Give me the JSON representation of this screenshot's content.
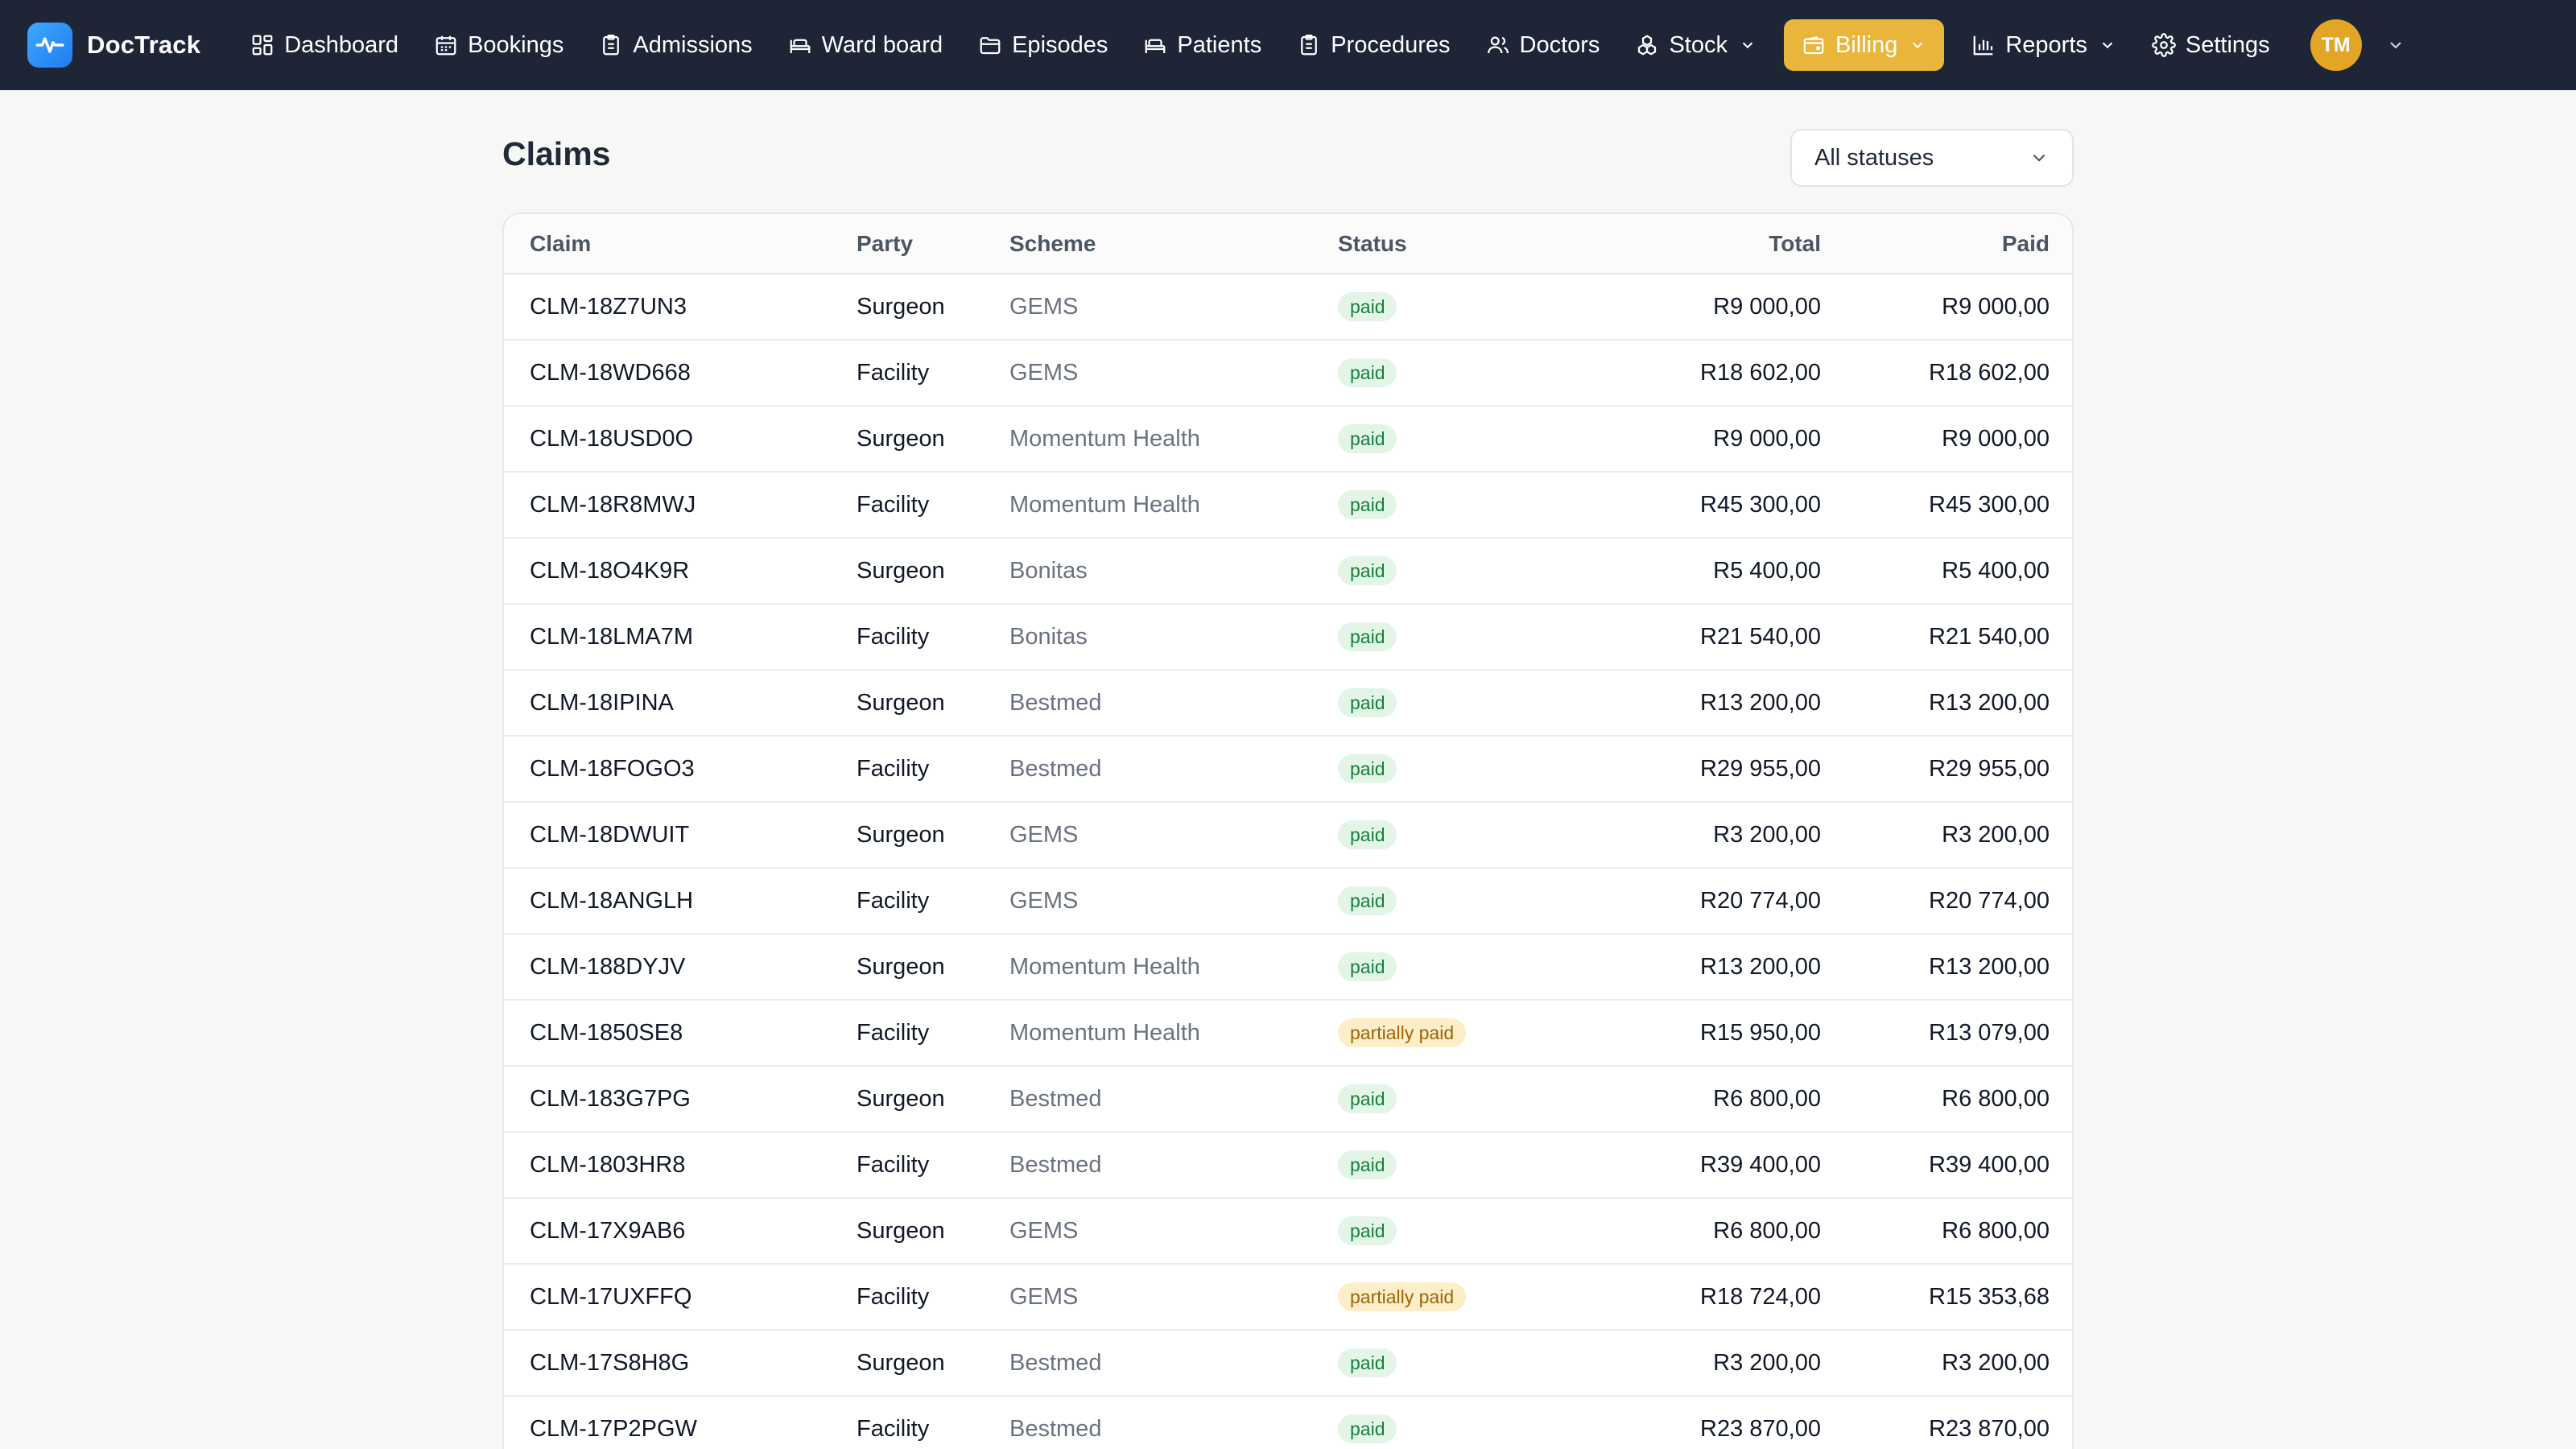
{
  "brand": {
    "name": "DocTrack",
    "icon": "pulse-logo-icon"
  },
  "nav": {
    "items": [
      {
        "label": "Dashboard",
        "icon": "grid-icon"
      },
      {
        "label": "Bookings",
        "icon": "calendar-icon"
      },
      {
        "label": "Admissions",
        "icon": "clipboard-icon"
      },
      {
        "label": "Ward board",
        "icon": "bed-icon"
      },
      {
        "label": "Episodes",
        "icon": "folder-icon"
      },
      {
        "label": "Patients",
        "icon": "bed-icon"
      },
      {
        "label": "Procedures",
        "icon": "clipboard-icon"
      },
      {
        "label": "Doctors",
        "icon": "users-icon"
      },
      {
        "label": "Stock",
        "icon": "boxes-icon"
      },
      {
        "label": "Billing",
        "icon": "wallet-icon"
      },
      {
        "label": "Reports",
        "icon": "bar-chart-icon"
      },
      {
        "label": "Settings",
        "icon": "gear-icon"
      }
    ],
    "active": "Billing",
    "avatar_initials": "TM"
  },
  "colors": {
    "nav_bg": "#1d2537",
    "active_tab": "#e9b53a",
    "avatar": "#e3a526",
    "paid_badge": "#e3f5e6",
    "partial_badge": "#fcefc8"
  },
  "page": {
    "title": "Claims",
    "status_filter": "All statuses"
  },
  "table": {
    "headers": {
      "claim": "Claim",
      "party": "Party",
      "scheme": "Scheme",
      "status": "Status",
      "total": "Total",
      "paid": "Paid"
    },
    "rows": [
      {
        "claim": "CLM-18Z7UN3",
        "party": "Surgeon",
        "scheme": "GEMS",
        "status": "paid",
        "total": "R9 000,00",
        "paid": "R9 000,00"
      },
      {
        "claim": "CLM-18WD668",
        "party": "Facility",
        "scheme": "GEMS",
        "status": "paid",
        "total": "R18 602,00",
        "paid": "R18 602,00"
      },
      {
        "claim": "CLM-18USD0O",
        "party": "Surgeon",
        "scheme": "Momentum Health",
        "status": "paid",
        "total": "R9 000,00",
        "paid": "R9 000,00"
      },
      {
        "claim": "CLM-18R8MWJ",
        "party": "Facility",
        "scheme": "Momentum Health",
        "status": "paid",
        "total": "R45 300,00",
        "paid": "R45 300,00"
      },
      {
        "claim": "CLM-18O4K9R",
        "party": "Surgeon",
        "scheme": "Bonitas",
        "status": "paid",
        "total": "R5 400,00",
        "paid": "R5 400,00"
      },
      {
        "claim": "CLM-18LMA7M",
        "party": "Facility",
        "scheme": "Bonitas",
        "status": "paid",
        "total": "R21 540,00",
        "paid": "R21 540,00"
      },
      {
        "claim": "CLM-18IPINA",
        "party": "Surgeon",
        "scheme": "Bestmed",
        "status": "paid",
        "total": "R13 200,00",
        "paid": "R13 200,00"
      },
      {
        "claim": "CLM-18FOGO3",
        "party": "Facility",
        "scheme": "Bestmed",
        "status": "paid",
        "total": "R29 955,00",
        "paid": "R29 955,00"
      },
      {
        "claim": "CLM-18DWUIT",
        "party": "Surgeon",
        "scheme": "GEMS",
        "status": "paid",
        "total": "R3 200,00",
        "paid": "R3 200,00"
      },
      {
        "claim": "CLM-18ANGLH",
        "party": "Facility",
        "scheme": "GEMS",
        "status": "paid",
        "total": "R20 774,00",
        "paid": "R20 774,00"
      },
      {
        "claim": "CLM-188DYJV",
        "party": "Surgeon",
        "scheme": "Momentum Health",
        "status": "paid",
        "total": "R13 200,00",
        "paid": "R13 200,00"
      },
      {
        "claim": "CLM-1850SE8",
        "party": "Facility",
        "scheme": "Momentum Health",
        "status": "partially paid",
        "total": "R15 950,00",
        "paid": "R13 079,00"
      },
      {
        "claim": "CLM-183G7PG",
        "party": "Surgeon",
        "scheme": "Bestmed",
        "status": "paid",
        "total": "R6 800,00",
        "paid": "R6 800,00"
      },
      {
        "claim": "CLM-1803HR8",
        "party": "Facility",
        "scheme": "Bestmed",
        "status": "paid",
        "total": "R39 400,00",
        "paid": "R39 400,00"
      },
      {
        "claim": "CLM-17X9AB6",
        "party": "Surgeon",
        "scheme": "GEMS",
        "status": "paid",
        "total": "R6 800,00",
        "paid": "R6 800,00"
      },
      {
        "claim": "CLM-17UXFFQ",
        "party": "Facility",
        "scheme": "GEMS",
        "status": "partially paid",
        "total": "R18 724,00",
        "paid": "R15 353,68"
      },
      {
        "claim": "CLM-17S8H8G",
        "party": "Surgeon",
        "scheme": "Bestmed",
        "status": "paid",
        "total": "R3 200,00",
        "paid": "R3 200,00"
      },
      {
        "claim": "CLM-17P2PGW",
        "party": "Facility",
        "scheme": "Bestmed",
        "status": "paid",
        "total": "R23 870,00",
        "paid": "R23 870,00"
      }
    ]
  }
}
